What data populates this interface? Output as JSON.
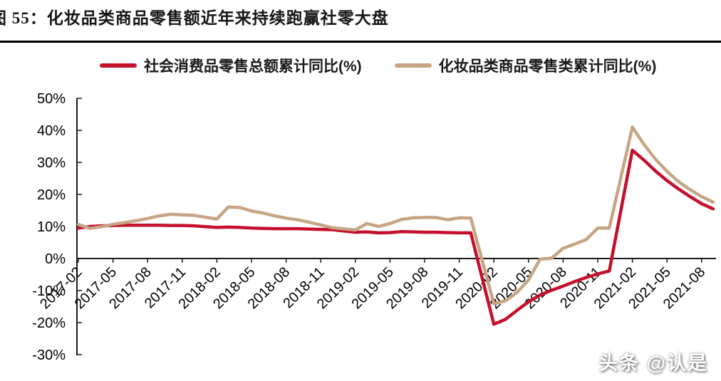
{
  "header": {
    "title": "图 55：化妆品类商品零售额近年来持续跑赢社零大盘"
  },
  "watermark": "头条 @认是",
  "colors": {
    "total_retail": "#C5102D",
    "cosmetics": "#C7A584",
    "axis": "#1a1a1a",
    "title_rule": "#000000"
  },
  "chart_data": {
    "type": "line",
    "title": "化妆品类商品零售额近年来持续跑赢社零大盘",
    "xlabel": "",
    "ylabel": "",
    "ylim": [
      -30,
      50
    ],
    "grid": "off",
    "legend_position": "top",
    "y_ticks": [
      "50%",
      "40%",
      "30%",
      "20%",
      "10%",
      "0%",
      "-10%",
      "-20%",
      "-30%"
    ],
    "x_tick_labels": [
      "2017-02",
      "2017-05",
      "2017-08",
      "2017-11",
      "2018-02",
      "2018-05",
      "2018-08",
      "2018-11",
      "2019-02",
      "2019-05",
      "2019-08",
      "2019-11",
      "2020-02",
      "2020-05",
      "2020-08",
      "2020-11",
      "2021-02",
      "2021-05",
      "2021-08"
    ],
    "categories": [
      "2017-02",
      "2017-03",
      "2017-04",
      "2017-05",
      "2017-06",
      "2017-07",
      "2017-08",
      "2017-09",
      "2017-10",
      "2017-11",
      "2017-12",
      "2018-02",
      "2018-03",
      "2018-04",
      "2018-05",
      "2018-06",
      "2018-07",
      "2018-08",
      "2018-09",
      "2018-10",
      "2018-11",
      "2018-12",
      "2019-02",
      "2019-03",
      "2019-04",
      "2019-05",
      "2019-06",
      "2019-07",
      "2019-08",
      "2019-09",
      "2019-10",
      "2019-11",
      "2019-12",
      "2020-02",
      "2020-03",
      "2020-04",
      "2020-05",
      "2020-06",
      "2020-07",
      "2020-08",
      "2020-09",
      "2020-10",
      "2020-11",
      "2020-12",
      "2021-02",
      "2021-03",
      "2021-04",
      "2021-05",
      "2021-06",
      "2021-07",
      "2021-08",
      "2021-09"
    ],
    "series": [
      {
        "name": "社会消费品零售总额累计同比(%)",
        "color": "#C5102D",
        "values": [
          9.5,
          10.0,
          10.2,
          10.3,
          10.4,
          10.4,
          10.4,
          10.4,
          10.3,
          10.3,
          10.2,
          9.7,
          9.8,
          9.7,
          9.5,
          9.4,
          9.3,
          9.3,
          9.3,
          9.2,
          9.1,
          9.0,
          8.2,
          8.3,
          8.0,
          8.1,
          8.4,
          8.3,
          8.2,
          8.2,
          8.1,
          8.0,
          8.0,
          -20.5,
          -19.0,
          -16.2,
          -13.5,
          -11.4,
          -9.9,
          -8.6,
          -7.2,
          -5.9,
          -4.8,
          -3.9,
          33.8,
          30.7,
          27.3,
          24.3,
          21.7,
          19.3,
          17.1,
          15.5
        ]
      },
      {
        "name": "化妆品类商品零售类累计同比(%)",
        "color": "#C7A584",
        "values": [
          10.6,
          9.4,
          9.9,
          10.7,
          11.2,
          11.8,
          12.5,
          13.3,
          13.8,
          13.6,
          13.5,
          12.3,
          16.1,
          15.9,
          14.8,
          14.2,
          13.3,
          12.6,
          12.1,
          11.3,
          10.5,
          9.6,
          8.9,
          10.9,
          10.0,
          10.9,
          12.2,
          12.7,
          12.8,
          12.8,
          12.1,
          12.7,
          12.6,
          -14.1,
          -13.2,
          -10.6,
          -6.7,
          -0.2,
          0.1,
          3.2,
          4.5,
          5.9,
          9.5,
          9.5,
          41.0,
          35.6,
          31.0,
          27.2,
          24.0,
          21.5,
          19.3,
          17.6
        ]
      }
    ]
  }
}
